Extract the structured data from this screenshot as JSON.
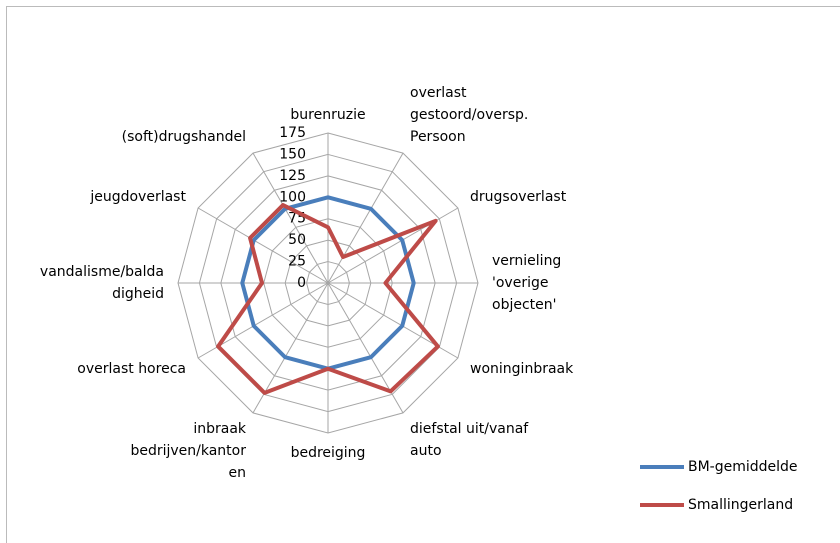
{
  "chart_data": {
    "type": "radar",
    "categories": [
      "burenruzie",
      "overlast\ngestoord/oversp.\nPersoon",
      "drugsoverlast",
      "vernieling\n'overige\nobjecten'",
      "woninginbraak",
      "diefstal uit/vanaf\nauto",
      "bedreiging",
      "inbraak\nbedrijven/kantor\nen",
      "overlast horeca",
      "vandalisme/balda\ndigheid",
      "jeugdoverlast",
      "(soft)drugshandel"
    ],
    "series": [
      {
        "name": "BM-gemiddelde",
        "color": "#4a7ebb",
        "values": [
          100,
          100,
          100,
          100,
          100,
          100,
          100,
          100,
          100,
          100,
          100,
          100
        ]
      },
      {
        "name": "Smallingerland",
        "color": "#be4b48",
        "values": [
          65,
          35,
          145,
          67,
          148,
          146,
          100,
          148,
          148,
          77,
          105,
          105
        ]
      }
    ],
    "rlim": [
      0,
      175
    ],
    "rticks": [
      0,
      25,
      50,
      75,
      100,
      125,
      150,
      175
    ],
    "grid": true,
    "legend": "bottom-right"
  }
}
